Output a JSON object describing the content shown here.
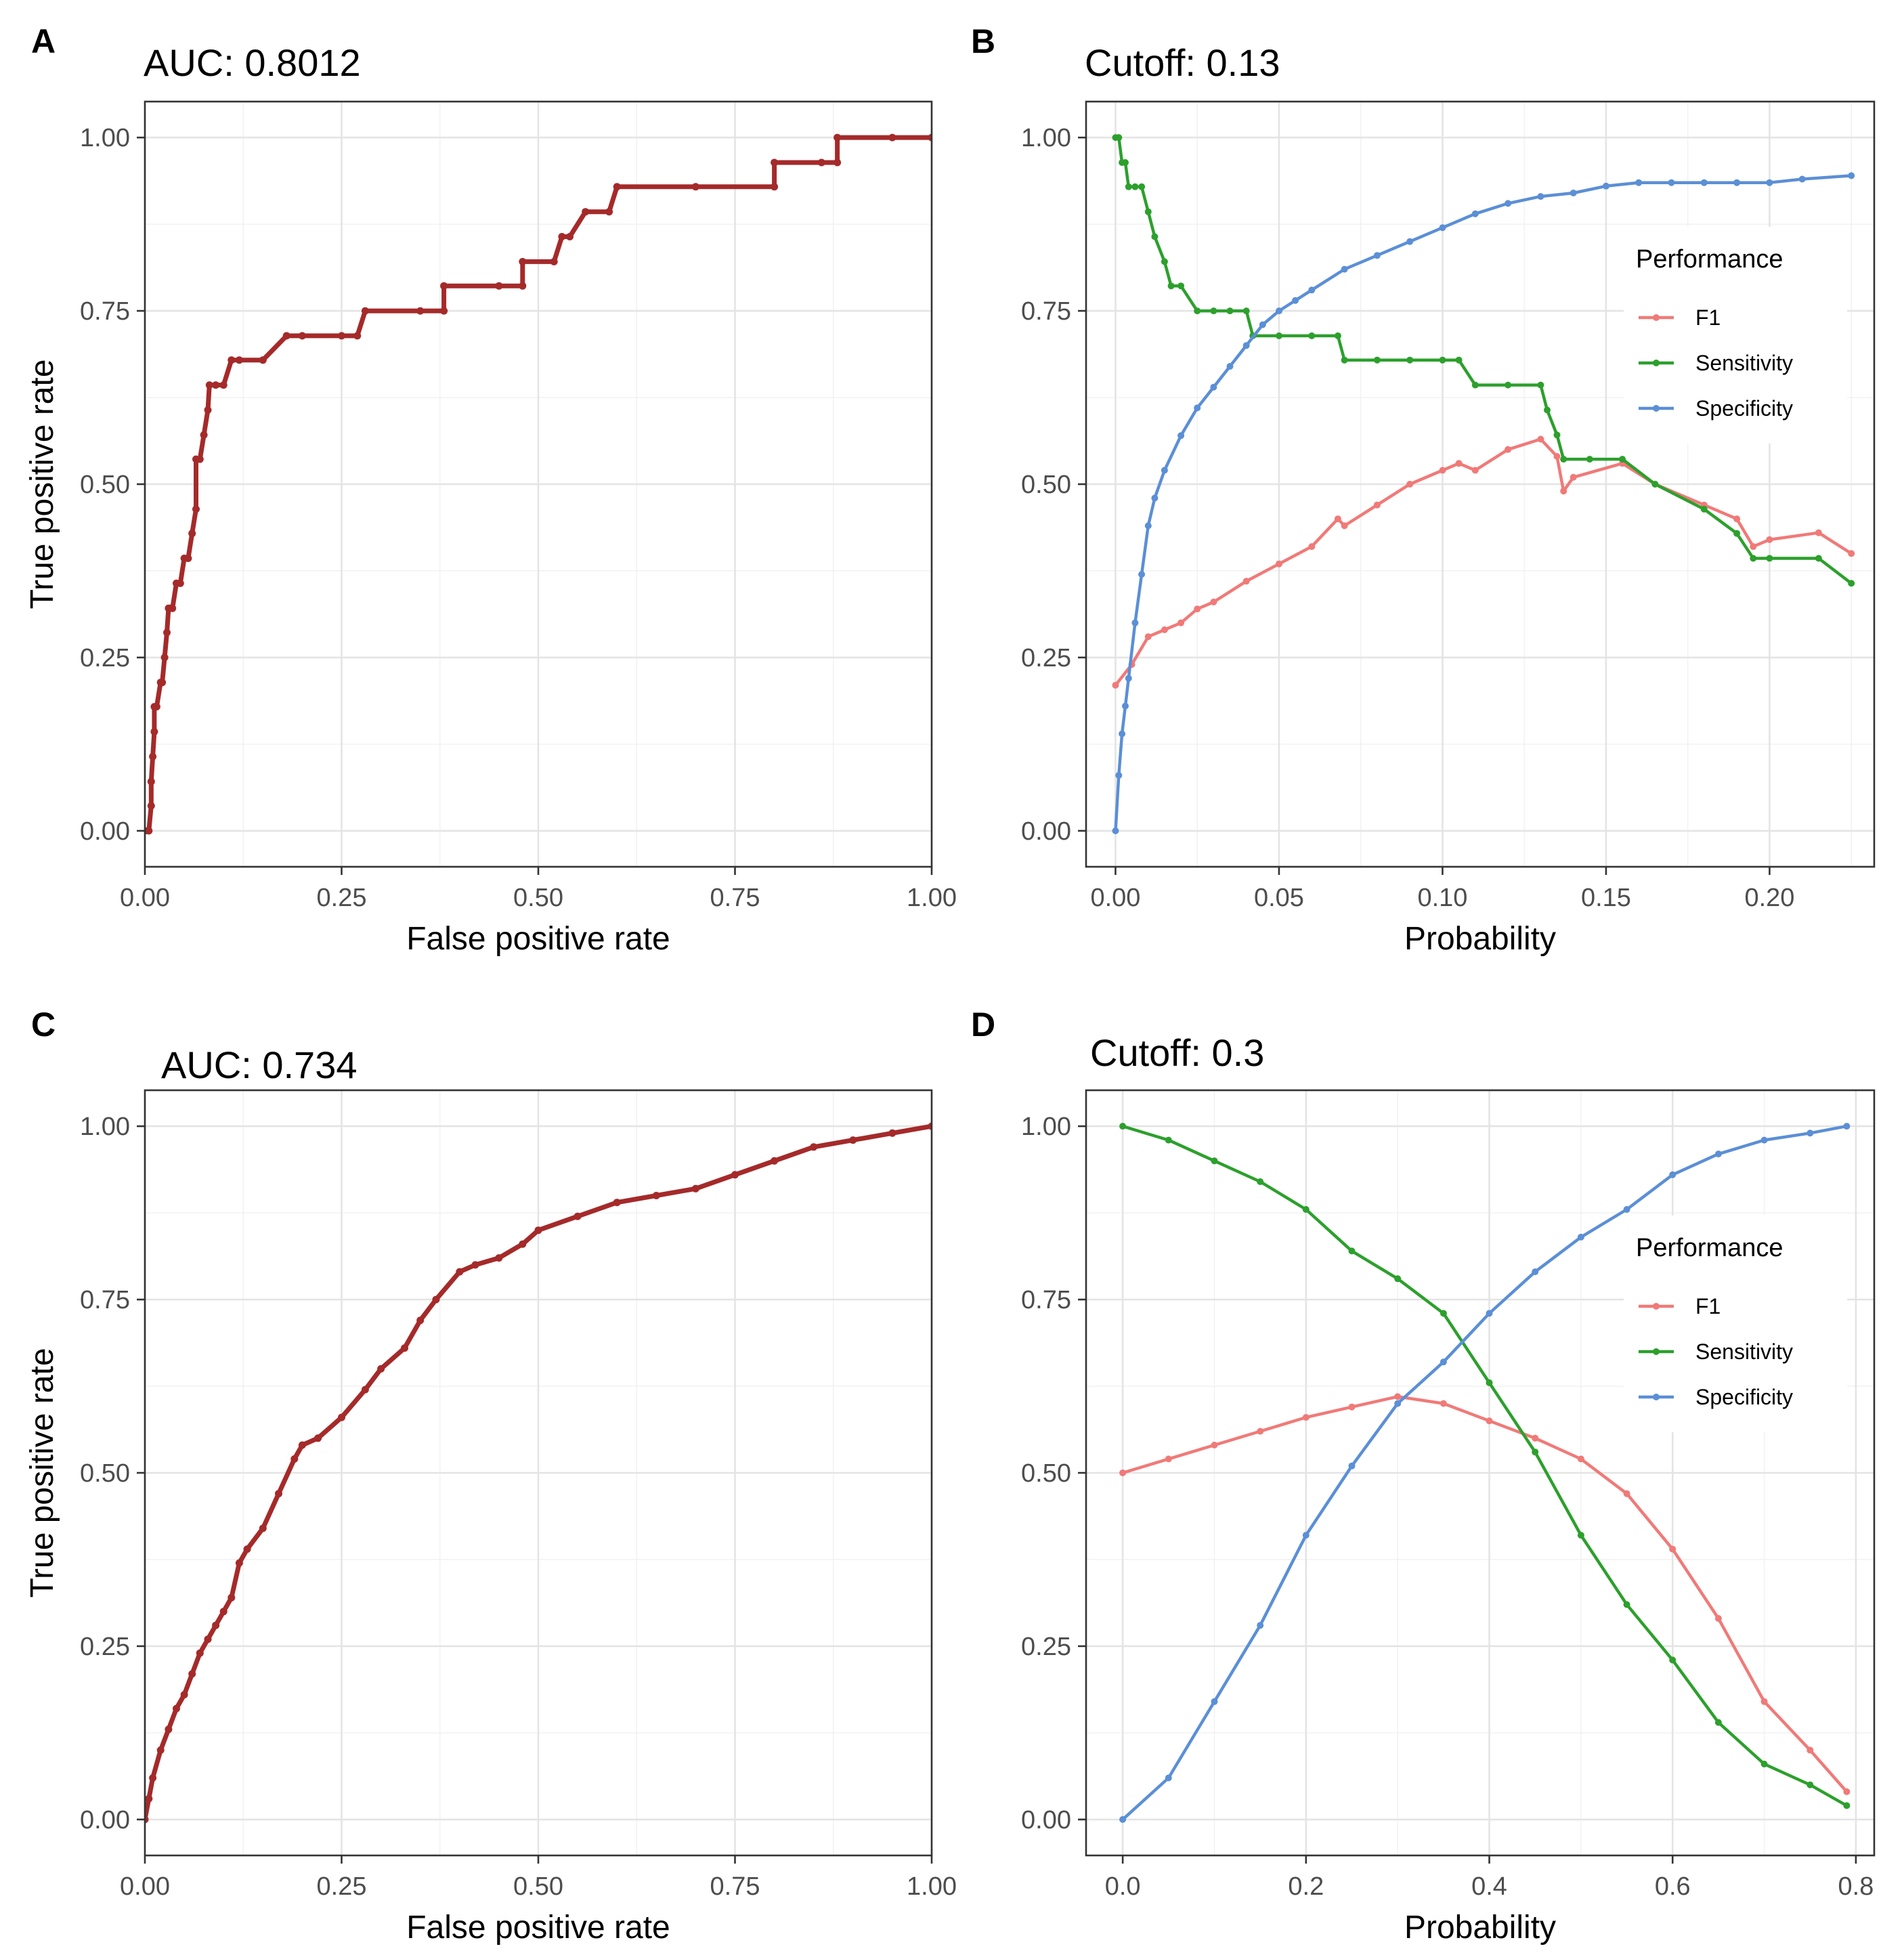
{
  "chart_data": [
    {
      "panel": "A",
      "type": "line",
      "title": "AUC: 0.8012",
      "xlabel": "False positive rate",
      "ylabel": "True positive rate",
      "xlim": [
        0,
        1
      ],
      "ylim": [
        0,
        1
      ],
      "x_ticks": [
        0,
        0.25,
        0.5,
        0.75,
        1
      ],
      "x_tick_labels": [
        "0.00",
        "0.25",
        "0.50",
        "0.75",
        "1.00"
      ],
      "y_ticks": [
        0,
        0.25,
        0.5,
        0.75,
        1
      ],
      "y_tick_labels": [
        "0.00",
        "0.25",
        "0.50",
        "0.75",
        "1.00"
      ],
      "grid": true,
      "series": [
        {
          "name": "ROC",
          "color": "#a52a2a",
          "x": [
            0,
            0.005,
            0.008,
            0.008,
            0.01,
            0.012,
            0.012,
            0.015,
            0.02,
            0.022,
            0.025,
            0.028,
            0.03,
            0.032,
            0.035,
            0.04,
            0.045,
            0.05,
            0.055,
            0.06,
            0.065,
            0.065,
            0.07,
            0.075,
            0.08,
            0.082,
            0.09,
            0.1,
            0.11,
            0.12,
            0.15,
            0.18,
            0.2,
            0.25,
            0.27,
            0.28,
            0.35,
            0.38,
            0.38,
            0.45,
            0.48,
            0.48,
            0.52,
            0.53,
            0.54,
            0.56,
            0.59,
            0.6,
            0.7,
            0.8,
            0.8,
            0.86,
            0.88,
            0.88,
            0.95,
            1.0
          ],
          "y": [
            0,
            0,
            0.036,
            0.071,
            0.107,
            0.143,
            0.179,
            0.179,
            0.214,
            0.214,
            0.25,
            0.286,
            0.321,
            0.321,
            0.321,
            0.357,
            0.357,
            0.393,
            0.393,
            0.429,
            0.464,
            0.536,
            0.536,
            0.571,
            0.607,
            0.643,
            0.643,
            0.643,
            0.679,
            0.679,
            0.679,
            0.714,
            0.714,
            0.714,
            0.714,
            0.75,
            0.75,
            0.75,
            0.786,
            0.786,
            0.786,
            0.821,
            0.821,
            0.857,
            0.857,
            0.893,
            0.893,
            0.929,
            0.929,
            0.929,
            0.964,
            0.964,
            0.964,
            1.0,
            1.0,
            1.0
          ]
        }
      ]
    },
    {
      "panel": "B",
      "type": "line",
      "title": "Cutoff: 0.13",
      "xlabel": "Probability",
      "ylabel": "",
      "xlim": [
        -0.009,
        0.232
      ],
      "ylim": [
        0,
        1
      ],
      "x_ticks": [
        0,
        0.05,
        0.1,
        0.15,
        0.2
      ],
      "x_tick_labels": [
        "0.00",
        "0.05",
        "0.10",
        "0.15",
        "0.20"
      ],
      "y_ticks": [
        0,
        0.25,
        0.5,
        0.75,
        1
      ],
      "y_tick_labels": [
        "0.00",
        "0.25",
        "0.50",
        "0.75",
        "1.00"
      ],
      "grid": true,
      "legend": {
        "title": "Performance",
        "position": "right-inside",
        "entries": [
          "F1",
          "Sensitivity",
          "Specificity"
        ]
      },
      "series": [
        {
          "name": "F1",
          "color": "#f07a78",
          "x": [
            0,
            0.005,
            0.01,
            0.015,
            0.02,
            0.025,
            0.03,
            0.04,
            0.05,
            0.06,
            0.068,
            0.07,
            0.08,
            0.09,
            0.1,
            0.105,
            0.11,
            0.12,
            0.13,
            0.135,
            0.137,
            0.14,
            0.155,
            0.165,
            0.18,
            0.19,
            0.195,
            0.2,
            0.215,
            0.225
          ],
          "y": [
            0.21,
            0.24,
            0.28,
            0.29,
            0.3,
            0.32,
            0.33,
            0.36,
            0.385,
            0.41,
            0.45,
            0.44,
            0.47,
            0.5,
            0.52,
            0.53,
            0.52,
            0.55,
            0.565,
            0.54,
            0.49,
            0.51,
            0.53,
            0.5,
            0.47,
            0.45,
            0.41,
            0.42,
            0.43,
            0.4
          ]
        },
        {
          "name": "Sensitivity",
          "color": "#2ca02c",
          "x": [
            0,
            0.001,
            0.002,
            0.003,
            0.004,
            0.006,
            0.008,
            0.01,
            0.012,
            0.015,
            0.017,
            0.02,
            0.025,
            0.03,
            0.035,
            0.04,
            0.042,
            0.05,
            0.06,
            0.068,
            0.07,
            0.08,
            0.09,
            0.1,
            0.105,
            0.11,
            0.12,
            0.13,
            0.132,
            0.135,
            0.137,
            0.145,
            0.155,
            0.165,
            0.18,
            0.19,
            0.195,
            0.2,
            0.215,
            0.225
          ],
          "y": [
            1.0,
            1.0,
            0.964,
            0.964,
            0.929,
            0.929,
            0.929,
            0.893,
            0.857,
            0.821,
            0.786,
            0.786,
            0.75,
            0.75,
            0.75,
            0.75,
            0.714,
            0.714,
            0.714,
            0.714,
            0.679,
            0.679,
            0.679,
            0.679,
            0.679,
            0.643,
            0.643,
            0.643,
            0.607,
            0.571,
            0.536,
            0.536,
            0.536,
            0.5,
            0.464,
            0.429,
            0.393,
            0.393,
            0.393,
            0.357
          ]
        },
        {
          "name": "Specificity",
          "color": "#5b8fd6",
          "x": [
            0,
            0.001,
            0.002,
            0.003,
            0.004,
            0.006,
            0.008,
            0.01,
            0.012,
            0.015,
            0.02,
            0.025,
            0.03,
            0.035,
            0.04,
            0.045,
            0.05,
            0.055,
            0.06,
            0.07,
            0.08,
            0.09,
            0.1,
            0.11,
            0.12,
            0.13,
            0.14,
            0.15,
            0.16,
            0.17,
            0.18,
            0.19,
            0.2,
            0.21,
            0.225
          ],
          "y": [
            0,
            0.08,
            0.14,
            0.18,
            0.22,
            0.3,
            0.37,
            0.44,
            0.48,
            0.52,
            0.57,
            0.61,
            0.64,
            0.67,
            0.7,
            0.73,
            0.75,
            0.765,
            0.78,
            0.81,
            0.83,
            0.85,
            0.87,
            0.89,
            0.905,
            0.915,
            0.92,
            0.93,
            0.935,
            0.935,
            0.935,
            0.935,
            0.935,
            0.94,
            0.945
          ]
        }
      ]
    },
    {
      "panel": "C",
      "type": "line",
      "title": "AUC: 0.734",
      "xlabel": "False positive rate",
      "ylabel": "True positive rate",
      "xlim": [
        0,
        1
      ],
      "ylim": [
        0,
        1
      ],
      "x_ticks": [
        0,
        0.25,
        0.5,
        0.75,
        1
      ],
      "x_tick_labels": [
        "0.00",
        "0.25",
        "0.50",
        "0.75",
        "1.00"
      ],
      "y_ticks": [
        0,
        0.25,
        0.5,
        0.75,
        1
      ],
      "y_tick_labels": [
        "0.00",
        "0.25",
        "0.50",
        "0.75",
        "1.00"
      ],
      "grid": true,
      "series": [
        {
          "name": "ROC",
          "color": "#a52a2a",
          "x": [
            0,
            0.005,
            0.01,
            0.02,
            0.03,
            0.04,
            0.05,
            0.06,
            0.07,
            0.08,
            0.09,
            0.1,
            0.11,
            0.12,
            0.13,
            0.15,
            0.17,
            0.19,
            0.2,
            0.22,
            0.25,
            0.28,
            0.3,
            0.33,
            0.35,
            0.37,
            0.4,
            0.42,
            0.45,
            0.48,
            0.5,
            0.55,
            0.6,
            0.65,
            0.7,
            0.75,
            0.8,
            0.85,
            0.9,
            0.95,
            1.0
          ],
          "y": [
            0,
            0.03,
            0.06,
            0.1,
            0.13,
            0.16,
            0.18,
            0.21,
            0.24,
            0.26,
            0.28,
            0.3,
            0.32,
            0.37,
            0.39,
            0.42,
            0.47,
            0.52,
            0.54,
            0.55,
            0.58,
            0.62,
            0.65,
            0.68,
            0.72,
            0.75,
            0.79,
            0.8,
            0.81,
            0.83,
            0.85,
            0.87,
            0.89,
            0.9,
            0.91,
            0.93,
            0.95,
            0.97,
            0.98,
            0.99,
            1.0
          ]
        }
      ]
    },
    {
      "panel": "D",
      "type": "line",
      "title": "Cutoff: 0.3",
      "xlabel": "Probability",
      "ylabel": "",
      "xlim": [
        -0.04,
        0.82
      ],
      "ylim": [
        0,
        1
      ],
      "x_ticks": [
        0,
        0.2,
        0.4,
        0.6,
        0.8
      ],
      "x_tick_labels": [
        "0.0",
        "0.2",
        "0.4",
        "0.6",
        "0.8"
      ],
      "y_ticks": [
        0,
        0.25,
        0.5,
        0.75,
        1
      ],
      "y_tick_labels": [
        "0.00",
        "0.25",
        "0.50",
        "0.75",
        "1.00"
      ],
      "grid": true,
      "legend": {
        "title": "Performance",
        "position": "right-inside",
        "entries": [
          "F1",
          "Sensitivity",
          "Specificity"
        ]
      },
      "series": [
        {
          "name": "F1",
          "color": "#f07a78",
          "x": [
            0,
            0.05,
            0.1,
            0.15,
            0.2,
            0.25,
            0.3,
            0.35,
            0.4,
            0.45,
            0.5,
            0.55,
            0.6,
            0.65,
            0.7,
            0.75,
            0.79
          ],
          "y": [
            0.5,
            0.52,
            0.54,
            0.56,
            0.58,
            0.595,
            0.61,
            0.6,
            0.575,
            0.55,
            0.52,
            0.47,
            0.39,
            0.29,
            0.17,
            0.1,
            0.04
          ]
        },
        {
          "name": "Sensitivity",
          "color": "#2ca02c",
          "x": [
            0,
            0.05,
            0.1,
            0.15,
            0.2,
            0.25,
            0.3,
            0.35,
            0.4,
            0.45,
            0.5,
            0.55,
            0.6,
            0.65,
            0.7,
            0.75,
            0.79
          ],
          "y": [
            1.0,
            0.98,
            0.95,
            0.92,
            0.88,
            0.82,
            0.78,
            0.73,
            0.63,
            0.53,
            0.41,
            0.31,
            0.23,
            0.14,
            0.08,
            0.05,
            0.02
          ]
        },
        {
          "name": "Specificity",
          "color": "#5b8fd6",
          "x": [
            0,
            0.05,
            0.1,
            0.15,
            0.2,
            0.25,
            0.3,
            0.35,
            0.4,
            0.45,
            0.5,
            0.55,
            0.6,
            0.65,
            0.7,
            0.75,
            0.79
          ],
          "y": [
            0,
            0.06,
            0.17,
            0.28,
            0.41,
            0.51,
            0.6,
            0.66,
            0.73,
            0.79,
            0.84,
            0.88,
            0.93,
            0.96,
            0.98,
            0.99,
            1.0
          ]
        }
      ]
    }
  ]
}
